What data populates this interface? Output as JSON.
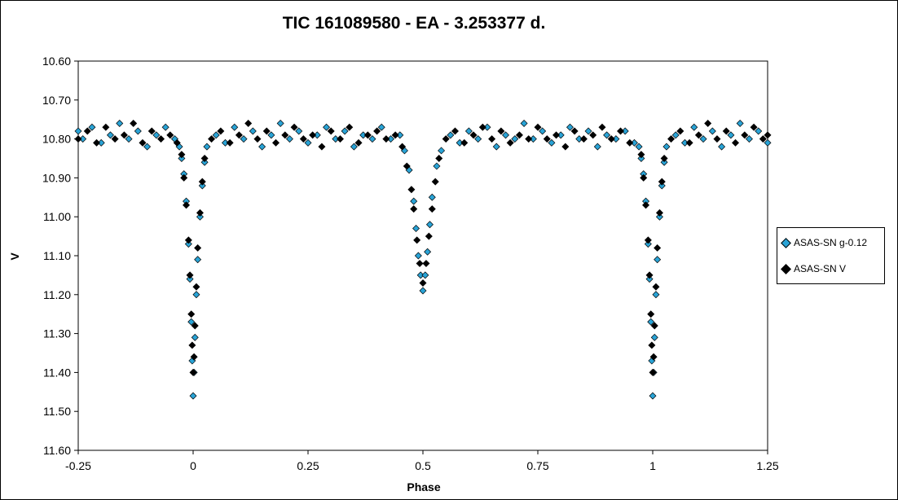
{
  "chart_data": {
    "type": "scatter",
    "title": "TIC 161089580  - EA - 3.253377 d.",
    "xlabel": "Phase",
    "ylabel": "V",
    "xlim": [
      -0.25,
      1.25
    ],
    "ylim": [
      10.6,
      11.6
    ],
    "y_inverted": true,
    "xticks": [
      "-0.25",
      "0",
      "0.25",
      "0.5",
      "0.75",
      "1",
      "1.25"
    ],
    "yticks": [
      "10.60",
      "10.70",
      "10.80",
      "10.90",
      "11.00",
      "11.10",
      "11.20",
      "11.30",
      "11.40",
      "11.50",
      "11.60"
    ],
    "grid": false,
    "legend_position": "right",
    "series": [
      {
        "name": "ASAS-SN g-0.12",
        "color": "#29a3d6",
        "marker": "diamond",
        "approx_baseline": 10.79,
        "approx_scatter": 0.03,
        "points": [
          [
            -0.25,
            10.78
          ],
          [
            -0.24,
            10.8
          ],
          [
            -0.22,
            10.77
          ],
          [
            -0.2,
            10.81
          ],
          [
            -0.18,
            10.79
          ],
          [
            -0.16,
            10.76
          ],
          [
            -0.14,
            10.8
          ],
          [
            -0.12,
            10.78
          ],
          [
            -0.1,
            10.82
          ],
          [
            -0.08,
            10.79
          ],
          [
            -0.06,
            10.77
          ],
          [
            -0.04,
            10.8
          ],
          [
            -0.03,
            10.82
          ],
          [
            -0.025,
            10.85
          ],
          [
            -0.02,
            10.89
          ],
          [
            -0.015,
            10.96
          ],
          [
            -0.01,
            11.07
          ],
          [
            -0.007,
            11.16
          ],
          [
            -0.004,
            11.27
          ],
          [
            -0.002,
            11.37
          ],
          [
            0.0,
            11.46
          ],
          [
            0.002,
            11.4
          ],
          [
            0.004,
            11.31
          ],
          [
            0.007,
            11.2
          ],
          [
            0.01,
            11.11
          ],
          [
            0.015,
            11.0
          ],
          [
            0.02,
            10.92
          ],
          [
            0.025,
            10.86
          ],
          [
            0.03,
            10.82
          ],
          [
            0.05,
            10.79
          ],
          [
            0.07,
            10.81
          ],
          [
            0.09,
            10.77
          ],
          [
            0.11,
            10.8
          ],
          [
            0.13,
            10.78
          ],
          [
            0.15,
            10.82
          ],
          [
            0.17,
            10.79
          ],
          [
            0.19,
            10.76
          ],
          [
            0.21,
            10.8
          ],
          [
            0.23,
            10.78
          ],
          [
            0.25,
            10.81
          ],
          [
            0.27,
            10.79
          ],
          [
            0.29,
            10.77
          ],
          [
            0.31,
            10.8
          ],
          [
            0.33,
            10.78
          ],
          [
            0.35,
            10.82
          ],
          [
            0.37,
            10.79
          ],
          [
            0.39,
            10.8
          ],
          [
            0.41,
            10.77
          ],
          [
            0.43,
            10.8
          ],
          [
            0.45,
            10.79
          ],
          [
            0.46,
            10.83
          ],
          [
            0.47,
            10.88
          ],
          [
            0.48,
            10.96
          ],
          [
            0.485,
            11.03
          ],
          [
            0.49,
            11.1
          ],
          [
            0.495,
            11.15
          ],
          [
            0.5,
            11.19
          ],
          [
            0.505,
            11.15
          ],
          [
            0.51,
            11.09
          ],
          [
            0.515,
            11.02
          ],
          [
            0.52,
            10.95
          ],
          [
            0.53,
            10.87
          ],
          [
            0.54,
            10.83
          ],
          [
            0.56,
            10.79
          ],
          [
            0.58,
            10.81
          ],
          [
            0.6,
            10.78
          ],
          [
            0.62,
            10.8
          ],
          [
            0.64,
            10.77
          ],
          [
            0.66,
            10.82
          ],
          [
            0.68,
            10.79
          ],
          [
            0.7,
            10.8
          ],
          [
            0.72,
            10.76
          ],
          [
            0.74,
            10.8
          ],
          [
            0.76,
            10.78
          ],
          [
            0.78,
            10.81
          ],
          [
            0.8,
            10.79
          ],
          [
            0.82,
            10.77
          ],
          [
            0.84,
            10.8
          ],
          [
            0.86,
            10.78
          ],
          [
            0.88,
            10.82
          ],
          [
            0.9,
            10.79
          ],
          [
            0.92,
            10.8
          ],
          [
            0.94,
            10.78
          ],
          [
            0.96,
            10.81
          ],
          [
            0.97,
            10.82
          ],
          [
            0.975,
            10.85
          ],
          [
            0.98,
            10.89
          ],
          [
            0.985,
            10.96
          ],
          [
            0.99,
            11.07
          ],
          [
            0.993,
            11.16
          ],
          [
            0.996,
            11.27
          ],
          [
            0.998,
            11.37
          ],
          [
            1.0,
            11.46
          ],
          [
            1.002,
            11.4
          ],
          [
            1.004,
            11.31
          ],
          [
            1.007,
            11.2
          ],
          [
            1.01,
            11.11
          ],
          [
            1.015,
            11.0
          ],
          [
            1.02,
            10.92
          ],
          [
            1.025,
            10.86
          ],
          [
            1.03,
            10.82
          ],
          [
            1.05,
            10.79
          ],
          [
            1.07,
            10.81
          ],
          [
            1.09,
            10.77
          ],
          [
            1.11,
            10.8
          ],
          [
            1.13,
            10.78
          ],
          [
            1.15,
            10.82
          ],
          [
            1.17,
            10.79
          ],
          [
            1.19,
            10.76
          ],
          [
            1.21,
            10.8
          ],
          [
            1.23,
            10.78
          ],
          [
            1.25,
            10.81
          ]
        ]
      },
      {
        "name": "ASAS-SN V",
        "color": "#000000",
        "marker": "diamond",
        "approx_baseline": 10.79,
        "approx_scatter": 0.025,
        "points": [
          [
            -0.25,
            10.8
          ],
          [
            -0.23,
            10.78
          ],
          [
            -0.21,
            10.81
          ],
          [
            -0.19,
            10.77
          ],
          [
            -0.17,
            10.8
          ],
          [
            -0.15,
            10.79
          ],
          [
            -0.13,
            10.76
          ],
          [
            -0.11,
            10.81
          ],
          [
            -0.09,
            10.78
          ],
          [
            -0.07,
            10.8
          ],
          [
            -0.05,
            10.79
          ],
          [
            -0.035,
            10.81
          ],
          [
            -0.025,
            10.84
          ],
          [
            -0.02,
            10.9
          ],
          [
            -0.015,
            10.97
          ],
          [
            -0.01,
            11.06
          ],
          [
            -0.007,
            11.15
          ],
          [
            -0.004,
            11.25
          ],
          [
            -0.002,
            11.33
          ],
          [
            0.0,
            11.4
          ],
          [
            0.002,
            11.36
          ],
          [
            0.004,
            11.28
          ],
          [
            0.007,
            11.18
          ],
          [
            0.01,
            11.08
          ],
          [
            0.015,
            10.99
          ],
          [
            0.02,
            10.91
          ],
          [
            0.025,
            10.85
          ],
          [
            0.04,
            10.8
          ],
          [
            0.06,
            10.78
          ],
          [
            0.08,
            10.81
          ],
          [
            0.1,
            10.79
          ],
          [
            0.12,
            10.76
          ],
          [
            0.14,
            10.8
          ],
          [
            0.16,
            10.78
          ],
          [
            0.18,
            10.81
          ],
          [
            0.2,
            10.79
          ],
          [
            0.22,
            10.77
          ],
          [
            0.24,
            10.8
          ],
          [
            0.26,
            10.79
          ],
          [
            0.28,
            10.82
          ],
          [
            0.3,
            10.78
          ],
          [
            0.32,
            10.8
          ],
          [
            0.34,
            10.77
          ],
          [
            0.36,
            10.81
          ],
          [
            0.38,
            10.79
          ],
          [
            0.4,
            10.78
          ],
          [
            0.42,
            10.8
          ],
          [
            0.44,
            10.79
          ],
          [
            0.455,
            10.82
          ],
          [
            0.465,
            10.87
          ],
          [
            0.475,
            10.93
          ],
          [
            0.48,
            10.98
          ],
          [
            0.487,
            11.06
          ],
          [
            0.493,
            11.12
          ],
          [
            0.5,
            11.17
          ],
          [
            0.507,
            11.12
          ],
          [
            0.513,
            11.05
          ],
          [
            0.52,
            10.98
          ],
          [
            0.527,
            10.91
          ],
          [
            0.535,
            10.85
          ],
          [
            0.55,
            10.8
          ],
          [
            0.57,
            10.78
          ],
          [
            0.59,
            10.81
          ],
          [
            0.61,
            10.79
          ],
          [
            0.63,
            10.77
          ],
          [
            0.65,
            10.8
          ],
          [
            0.67,
            10.78
          ],
          [
            0.69,
            10.81
          ],
          [
            0.71,
            10.79
          ],
          [
            0.73,
            10.8
          ],
          [
            0.75,
            10.77
          ],
          [
            0.77,
            10.8
          ],
          [
            0.79,
            10.79
          ],
          [
            0.81,
            10.82
          ],
          [
            0.83,
            10.78
          ],
          [
            0.85,
            10.8
          ],
          [
            0.87,
            10.79
          ],
          [
            0.89,
            10.77
          ],
          [
            0.91,
            10.8
          ],
          [
            0.93,
            10.78
          ],
          [
            0.95,
            10.81
          ],
          [
            0.975,
            10.84
          ],
          [
            0.98,
            10.9
          ],
          [
            0.985,
            10.97
          ],
          [
            0.99,
            11.06
          ],
          [
            0.993,
            11.15
          ],
          [
            0.996,
            11.25
          ],
          [
            0.998,
            11.33
          ],
          [
            1.0,
            11.4
          ],
          [
            1.002,
            11.36
          ],
          [
            1.004,
            11.28
          ],
          [
            1.007,
            11.18
          ],
          [
            1.01,
            11.08
          ],
          [
            1.015,
            10.99
          ],
          [
            1.02,
            10.91
          ],
          [
            1.025,
            10.85
          ],
          [
            1.04,
            10.8
          ],
          [
            1.06,
            10.78
          ],
          [
            1.08,
            10.81
          ],
          [
            1.1,
            10.79
          ],
          [
            1.12,
            10.76
          ],
          [
            1.14,
            10.8
          ],
          [
            1.16,
            10.78
          ],
          [
            1.18,
            10.81
          ],
          [
            1.2,
            10.79
          ],
          [
            1.22,
            10.77
          ],
          [
            1.24,
            10.8
          ],
          [
            1.25,
            10.79
          ]
        ]
      }
    ]
  }
}
